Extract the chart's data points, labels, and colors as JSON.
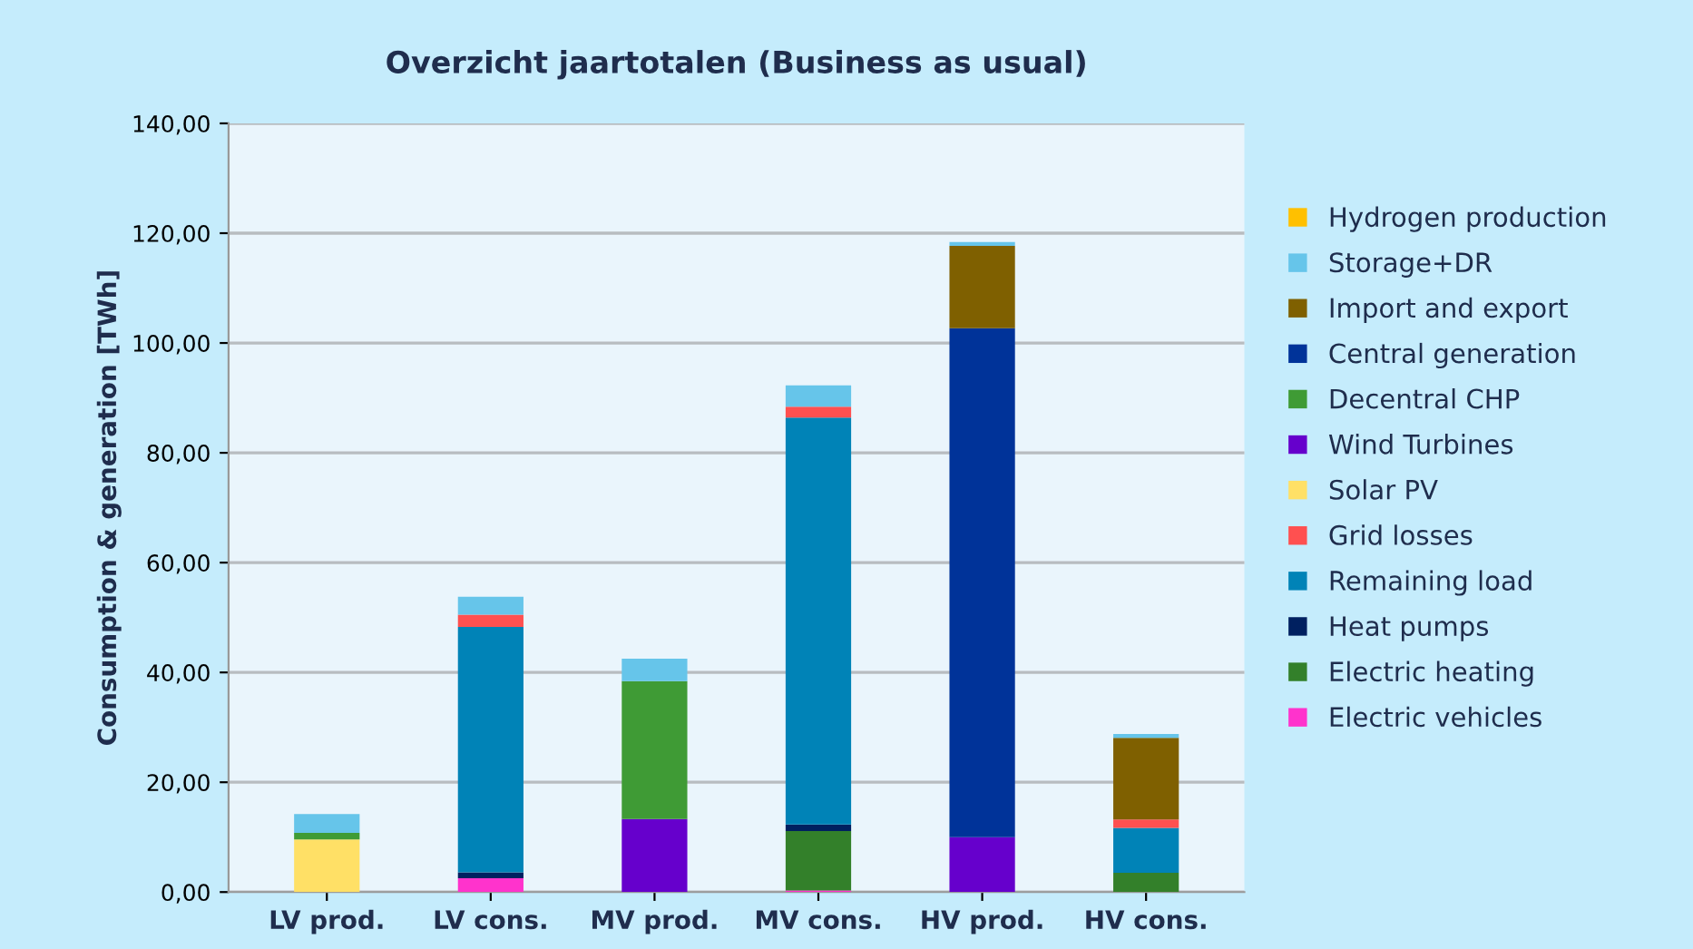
{
  "chart_data": {
    "type": "bar",
    "stacked": true,
    "title": "Overzicht jaartotalen (Business as usual)",
    "ylabel": "Consumption & generation [TWh]",
    "categories": [
      "LV prod.",
      "LV cons.",
      "MV prod.",
      "MV cons.",
      "HV prod.",
      "HV cons."
    ],
    "series": [
      {
        "name": "Electric vehicles",
        "color": "#ff33cc",
        "values": [
          null,
          2.5,
          null,
          0.3,
          null,
          null
        ]
      },
      {
        "name": "Electric heating",
        "color": "#33802a",
        "values": [
          null,
          null,
          null,
          10.8,
          null,
          3.5
        ]
      },
      {
        "name": "Heat pumps",
        "color": "#002060",
        "values": [
          null,
          1.1,
          null,
          1.2,
          null,
          null
        ]
      },
      {
        "name": "Remaining load",
        "color": "#0083b7",
        "values": [
          null,
          44.7,
          null,
          74.1,
          null,
          8.2
        ]
      },
      {
        "name": "Grid losses",
        "color": "#ff5050",
        "values": [
          null,
          2.2,
          null,
          2.0,
          null,
          1.5
        ]
      },
      {
        "name": "Solar PV",
        "color": "#ffe066",
        "values": [
          9.6,
          null,
          null,
          null,
          null,
          null
        ]
      },
      {
        "name": "Wind Turbines",
        "color": "#6600cc",
        "values": [
          null,
          null,
          13.3,
          null,
          10.0,
          null
        ]
      },
      {
        "name": "Decentral CHP",
        "color": "#3f9b35",
        "values": [
          1.2,
          null,
          25.1,
          null,
          null,
          null
        ]
      },
      {
        "name": "Central generation",
        "color": "#003399",
        "values": [
          null,
          null,
          null,
          null,
          92.7,
          null
        ]
      },
      {
        "name": "Import and export",
        "color": "#7f6000",
        "values": [
          null,
          null,
          null,
          null,
          15.0,
          14.9
        ]
      },
      {
        "name": "Storage+DR",
        "color": "#66c5ea",
        "values": [
          3.4,
          3.3,
          4.1,
          3.9,
          0.7,
          0.7
        ]
      },
      {
        "name": "Hydrogen production",
        "color": "#ffc000",
        "values": [
          null,
          null,
          null,
          null,
          null,
          null
        ]
      }
    ],
    "ylim": [
      0,
      140
    ],
    "yticks": [
      {
        "value": 0,
        "label": "0,00"
      },
      {
        "value": 20,
        "label": "20,00"
      },
      {
        "value": 40,
        "label": "40,00"
      },
      {
        "value": 60,
        "label": "60,00"
      },
      {
        "value": 80,
        "label": "80,00"
      },
      {
        "value": 100,
        "label": "100,00"
      },
      {
        "value": 120,
        "label": "120,00"
      },
      {
        "value": 140,
        "label": "140,00"
      }
    ],
    "grid": "y",
    "legend": "right"
  }
}
